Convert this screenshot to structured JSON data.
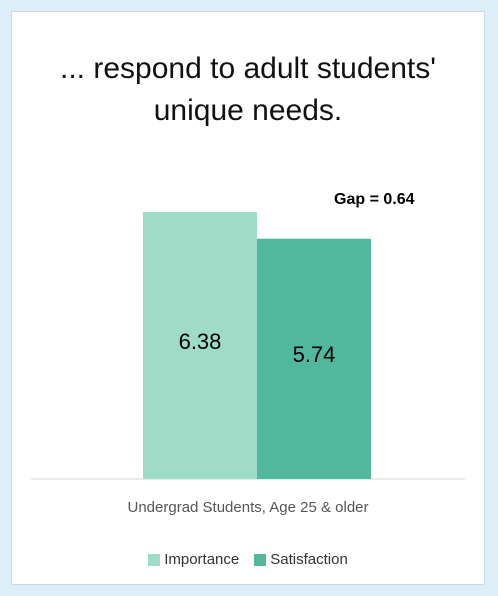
{
  "chart_data": {
    "type": "bar",
    "title": "... respond to adult students' unique needs.",
    "categories": [
      "Undergrad Students, Age 25 & older"
    ],
    "series": [
      {
        "name": "Importance",
        "values": [
          6.38
        ],
        "color": "#9fdcc8"
      },
      {
        "name": "Satisfaction",
        "values": [
          5.74
        ],
        "color": "#52b89d"
      }
    ],
    "value_labels": [
      "6.38",
      "5.74"
    ],
    "annotation": "Gap = 0.64",
    "xlabel": "Undergrad Students, Age 25 & older",
    "ylabel": "",
    "grid": false,
    "legend": "bottom",
    "ylim": [
      0,
      7
    ]
  },
  "colors": {
    "background": "#ddeef8",
    "panel": "#ffffff",
    "axis": "#d7d7d7"
  }
}
